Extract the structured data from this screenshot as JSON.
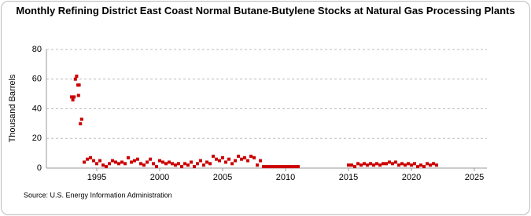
{
  "chart_data": {
    "type": "scatter",
    "title": "Monthly Refining District East Coast Normal Butane-Butylene Stocks at Natural Gas Processing Plants",
    "y_label": "Thousand Barrels",
    "source": "Source: U.S. Energy Information Administration",
    "color": "#cc0000",
    "xlim": [
      1991,
      2026
    ],
    "xticks": [
      1995,
      2000,
      2005,
      2010,
      2015,
      2020,
      2025
    ],
    "ylim": [
      0,
      80
    ],
    "yticks": [
      0,
      20,
      40,
      60,
      80
    ],
    "grid": true,
    "x": [
      1993.0,
      1993.1,
      1993.2,
      1993.3,
      1993.4,
      1993.5,
      1993.55,
      1993.6,
      1993.7,
      1993.8,
      1994.0,
      1994.25,
      1994.5,
      1994.75,
      1995.0,
      1995.25,
      1995.5,
      1995.75,
      1996.0,
      1996.25,
      1996.5,
      1996.75,
      1997.0,
      1997.25,
      1997.5,
      1997.75,
      1998.0,
      1998.25,
      1998.5,
      1998.75,
      1999.0,
      1999.25,
      1999.5,
      1999.75,
      2000.0,
      2000.25,
      2000.5,
      2000.75,
      2001.0,
      2001.25,
      2001.5,
      2001.75,
      2002.0,
      2002.25,
      2002.5,
      2002.75,
      2003.0,
      2003.25,
      2003.5,
      2003.75,
      2004.0,
      2004.25,
      2004.5,
      2004.75,
      2005.0,
      2005.25,
      2005.5,
      2005.75,
      2006.0,
      2006.25,
      2006.5,
      2006.75,
      2007.0,
      2007.25,
      2007.5,
      2007.75,
      2008.0,
      2008.25,
      2008.5,
      2008.75,
      2009.0,
      2009.25,
      2009.5,
      2009.75,
      2010.0,
      2010.25,
      2010.5,
      2010.75,
      2011.0,
      2015.0,
      2015.25,
      2015.5,
      2015.75,
      2016.0,
      2016.25,
      2016.5,
      2016.75,
      2017.0,
      2017.25,
      2017.5,
      2017.75,
      2018.0,
      2018.25,
      2018.5,
      2018.75,
      2019.0,
      2019.25,
      2019.5,
      2019.75,
      2020.0,
      2020.25,
      2020.5,
      2020.75,
      2021.0,
      2021.25,
      2021.5,
      2021.75,
      2022.0
    ],
    "values": [
      48,
      46,
      48,
      60,
      62,
      56,
      49,
      56,
      30,
      33,
      4,
      6,
      7,
      5,
      3,
      5,
      2,
      1,
      3,
      5,
      4,
      3,
      4,
      3,
      7,
      4,
      5,
      6,
      3,
      2,
      4,
      6,
      3,
      1,
      5,
      4,
      3,
      4,
      3,
      2,
      3,
      1,
      3,
      2,
      4,
      1,
      3,
      5,
      2,
      4,
      3,
      8,
      6,
      5,
      7,
      4,
      6,
      3,
      5,
      8,
      6,
      7,
      5,
      8,
      7,
      2,
      5,
      1,
      1,
      1,
      1,
      1,
      1,
      1,
      1,
      1,
      1,
      1,
      1,
      2,
      2,
      1,
      3,
      2,
      3,
      2,
      3,
      2,
      3,
      2,
      3,
      3,
      4,
      3,
      4,
      2,
      3,
      2,
      3,
      2,
      3,
      1,
      2,
      1,
      3,
      2,
      3,
      2
    ]
  }
}
